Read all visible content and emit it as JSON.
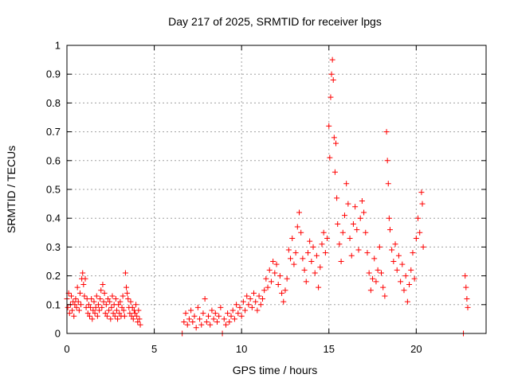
{
  "chart_data": {
    "type": "scatter",
    "title": "Day 217 of 2025, SRMTID for receiver lpgs",
    "xlabel": "GPS time / hours",
    "ylabel": "SRMTID / TECUs",
    "xlim": [
      0,
      24
    ],
    "ylim": [
      0,
      1
    ],
    "xticks": [
      0,
      5,
      10,
      15,
      20
    ],
    "xtick_labels": [
      "0",
      "5",
      "10",
      "15",
      "20"
    ],
    "yticks": [
      0,
      0.1,
      0.2,
      0.3,
      0.4,
      0.5,
      0.6,
      0.7,
      0.8,
      0.9,
      1
    ],
    "ytick_labels": [
      "0",
      "0.1",
      "0.2",
      "0.3",
      "0.4",
      "0.5",
      "0.6",
      "0.7",
      "0.8",
      "0.9",
      "1"
    ],
    "grid": true,
    "marker": "plus",
    "color": "#ff0000",
    "series": [
      {
        "name": "SRMTID",
        "points": [
          [
            0.0,
            0.12
          ],
          [
            0.05,
            0.09
          ],
          [
            0.1,
            0.14
          ],
          [
            0.15,
            0.07
          ],
          [
            0.2,
            0.1
          ],
          [
            0.25,
            0.13
          ],
          [
            0.3,
            0.08
          ],
          [
            0.35,
            0.11
          ],
          [
            0.4,
            0.06
          ],
          [
            0.45,
            0.1
          ],
          [
            0.5,
            0.12
          ],
          [
            0.55,
            0.09
          ],
          [
            0.6,
            0.16
          ],
          [
            0.65,
            0.11
          ],
          [
            0.7,
            0.08
          ],
          [
            0.75,
            0.14
          ],
          [
            0.8,
            0.1
          ],
          [
            0.85,
            0.19
          ],
          [
            0.9,
            0.21
          ],
          [
            0.95,
            0.17
          ],
          [
            1.0,
            0.13
          ],
          [
            1.05,
            0.19
          ],
          [
            1.1,
            0.09
          ],
          [
            1.15,
            0.12
          ],
          [
            1.2,
            0.07
          ],
          [
            1.25,
            0.1
          ],
          [
            1.3,
            0.06
          ],
          [
            1.35,
            0.09
          ],
          [
            1.4,
            0.12
          ],
          [
            1.45,
            0.05
          ],
          [
            1.5,
            0.08
          ],
          [
            1.55,
            0.11
          ],
          [
            1.6,
            0.07
          ],
          [
            1.65,
            0.09
          ],
          [
            1.7,
            0.13
          ],
          [
            1.75,
            0.06
          ],
          [
            1.8,
            0.1
          ],
          [
            1.85,
            0.08
          ],
          [
            1.9,
            0.12
          ],
          [
            1.95,
            0.15
          ],
          [
            2.0,
            0.09
          ],
          [
            2.05,
            0.17
          ],
          [
            2.1,
            0.11
          ],
          [
            2.15,
            0.14
          ],
          [
            2.2,
            0.07
          ],
          [
            2.25,
            0.1
          ],
          [
            2.3,
            0.06
          ],
          [
            2.35,
            0.12
          ],
          [
            2.4,
            0.08
          ],
          [
            2.45,
            0.11
          ],
          [
            2.5,
            0.05
          ],
          [
            2.55,
            0.09
          ],
          [
            2.6,
            0.13
          ],
          [
            2.65,
            0.07
          ],
          [
            2.7,
            0.1
          ],
          [
            2.75,
            0.06
          ],
          [
            2.8,
            0.12
          ],
          [
            2.85,
            0.08
          ],
          [
            2.9,
            0.05
          ],
          [
            2.95,
            0.1
          ],
          [
            3.0,
            0.07
          ],
          [
            3.05,
            0.11
          ],
          [
            3.1,
            0.06
          ],
          [
            3.15,
            0.09
          ],
          [
            3.2,
            0.13
          ],
          [
            3.25,
            0.08
          ],
          [
            3.3,
            0.06
          ],
          [
            3.35,
            0.21
          ],
          [
            3.4,
            0.16
          ],
          [
            3.45,
            0.14
          ],
          [
            3.5,
            0.12
          ],
          [
            3.55,
            0.09
          ],
          [
            3.6,
            0.07
          ],
          [
            3.65,
            0.11
          ],
          [
            3.7,
            0.06
          ],
          [
            3.75,
            0.09
          ],
          [
            3.8,
            0.05
          ],
          [
            3.85,
            0.08
          ],
          [
            3.9,
            0.07
          ],
          [
            3.95,
            0.1
          ],
          [
            4.0,
            0.06
          ],
          [
            4.05,
            0.04
          ],
          [
            4.1,
            0.08
          ],
          [
            4.15,
            0.05
          ],
          [
            4.2,
            0.03
          ],
          [
            6.6,
            0.0
          ],
          [
            6.7,
            0.04
          ],
          [
            6.8,
            0.07
          ],
          [
            6.9,
            0.03
          ],
          [
            7.0,
            0.05
          ],
          [
            7.1,
            0.08
          ],
          [
            7.2,
            0.04
          ],
          [
            7.3,
            0.06
          ],
          [
            7.4,
            0.02
          ],
          [
            7.5,
            0.09
          ],
          [
            7.6,
            0.05
          ],
          [
            7.7,
            0.03
          ],
          [
            7.8,
            0.07
          ],
          [
            7.9,
            0.12
          ],
          [
            8.0,
            0.04
          ],
          [
            8.1,
            0.06
          ],
          [
            8.2,
            0.03
          ],
          [
            8.3,
            0.08
          ],
          [
            8.4,
            0.05
          ],
          [
            8.5,
            0.07
          ],
          [
            8.6,
            0.04
          ],
          [
            8.7,
            0.06
          ],
          [
            8.8,
            0.09
          ],
          [
            8.9,
            0.0
          ],
          [
            9.0,
            0.05
          ],
          [
            9.1,
            0.03
          ],
          [
            9.2,
            0.07
          ],
          [
            9.3,
            0.04
          ],
          [
            9.4,
            0.06
          ],
          [
            9.5,
            0.08
          ],
          [
            9.6,
            0.05
          ],
          [
            9.7,
            0.1
          ],
          [
            9.8,
            0.07
          ],
          [
            9.9,
            0.09
          ],
          [
            10.0,
            0.06
          ],
          [
            10.1,
            0.11
          ],
          [
            10.2,
            0.08
          ],
          [
            10.3,
            0.13
          ],
          [
            10.4,
            0.1
          ],
          [
            10.5,
            0.12
          ],
          [
            10.6,
            0.09
          ],
          [
            10.7,
            0.14
          ],
          [
            10.8,
            0.11
          ],
          [
            10.9,
            0.08
          ],
          [
            11.0,
            0.13
          ],
          [
            11.1,
            0.1
          ],
          [
            11.2,
            0.12
          ],
          [
            11.3,
            0.15
          ],
          [
            11.4,
            0.19
          ],
          [
            11.5,
            0.16
          ],
          [
            11.6,
            0.22
          ],
          [
            11.7,
            0.18
          ],
          [
            11.8,
            0.25
          ],
          [
            11.9,
            0.21
          ],
          [
            12.0,
            0.24
          ],
          [
            12.1,
            0.17
          ],
          [
            12.2,
            0.2
          ],
          [
            12.3,
            0.14
          ],
          [
            12.4,
            0.11
          ],
          [
            12.5,
            0.15
          ],
          [
            12.6,
            0.19
          ],
          [
            12.7,
            0.29
          ],
          [
            12.8,
            0.26
          ],
          [
            12.9,
            0.33
          ],
          [
            13.0,
            0.24
          ],
          [
            13.1,
            0.28
          ],
          [
            13.2,
            0.37
          ],
          [
            13.3,
            0.42
          ],
          [
            13.4,
            0.35
          ],
          [
            13.5,
            0.26
          ],
          [
            13.6,
            0.22
          ],
          [
            13.7,
            0.18
          ],
          [
            13.8,
            0.28
          ],
          [
            13.9,
            0.32
          ],
          [
            14.0,
            0.25
          ],
          [
            14.1,
            0.3
          ],
          [
            14.2,
            0.21
          ],
          [
            14.3,
            0.27
          ],
          [
            14.4,
            0.16
          ],
          [
            14.5,
            0.23
          ],
          [
            14.6,
            0.31
          ],
          [
            14.7,
            0.35
          ],
          [
            14.8,
            0.28
          ],
          [
            14.9,
            0.33
          ],
          [
            15.0,
            0.72
          ],
          [
            15.05,
            0.61
          ],
          [
            15.1,
            0.82
          ],
          [
            15.15,
            0.9
          ],
          [
            15.2,
            0.95
          ],
          [
            15.25,
            0.88
          ],
          [
            15.3,
            0.68
          ],
          [
            15.35,
            0.56
          ],
          [
            15.4,
            0.66
          ],
          [
            15.45,
            0.47
          ],
          [
            15.5,
            0.38
          ],
          [
            15.6,
            0.31
          ],
          [
            15.7,
            0.25
          ],
          [
            15.8,
            0.35
          ],
          [
            15.9,
            0.41
          ],
          [
            16.0,
            0.52
          ],
          [
            16.1,
            0.45
          ],
          [
            16.2,
            0.33
          ],
          [
            16.3,
            0.27
          ],
          [
            16.4,
            0.38
          ],
          [
            16.5,
            0.44
          ],
          [
            16.6,
            0.36
          ],
          [
            16.7,
            0.29
          ],
          [
            16.8,
            0.4
          ],
          [
            16.9,
            0.46
          ],
          [
            17.0,
            0.42
          ],
          [
            17.1,
            0.35
          ],
          [
            17.2,
            0.28
          ],
          [
            17.3,
            0.21
          ],
          [
            17.4,
            0.15
          ],
          [
            17.5,
            0.19
          ],
          [
            17.6,
            0.26
          ],
          [
            17.7,
            0.18
          ],
          [
            17.8,
            0.22
          ],
          [
            17.9,
            0.3
          ],
          [
            18.0,
            0.21
          ],
          [
            18.1,
            0.16
          ],
          [
            18.2,
            0.13
          ],
          [
            18.3,
            0.7
          ],
          [
            18.35,
            0.6
          ],
          [
            18.4,
            0.52
          ],
          [
            18.45,
            0.4
          ],
          [
            18.5,
            0.36
          ],
          [
            18.6,
            0.29
          ],
          [
            18.7,
            0.25
          ],
          [
            18.8,
            0.31
          ],
          [
            18.9,
            0.22
          ],
          [
            19.0,
            0.27
          ],
          [
            19.1,
            0.18
          ],
          [
            19.2,
            0.24
          ],
          [
            19.3,
            0.15
          ],
          [
            19.4,
            0.2
          ],
          [
            19.5,
            0.11
          ],
          [
            19.6,
            0.17
          ],
          [
            19.7,
            0.22
          ],
          [
            19.8,
            0.28
          ],
          [
            19.9,
            0.19
          ],
          [
            20.0,
            0.33
          ],
          [
            20.1,
            0.4
          ],
          [
            20.2,
            0.35
          ],
          [
            20.3,
            0.49
          ],
          [
            20.35,
            0.45
          ],
          [
            20.4,
            0.3
          ],
          [
            22.7,
            0.0
          ],
          [
            22.8,
            0.2
          ],
          [
            22.85,
            0.16
          ],
          [
            22.9,
            0.12
          ],
          [
            22.95,
            0.09
          ]
        ]
      }
    ]
  }
}
